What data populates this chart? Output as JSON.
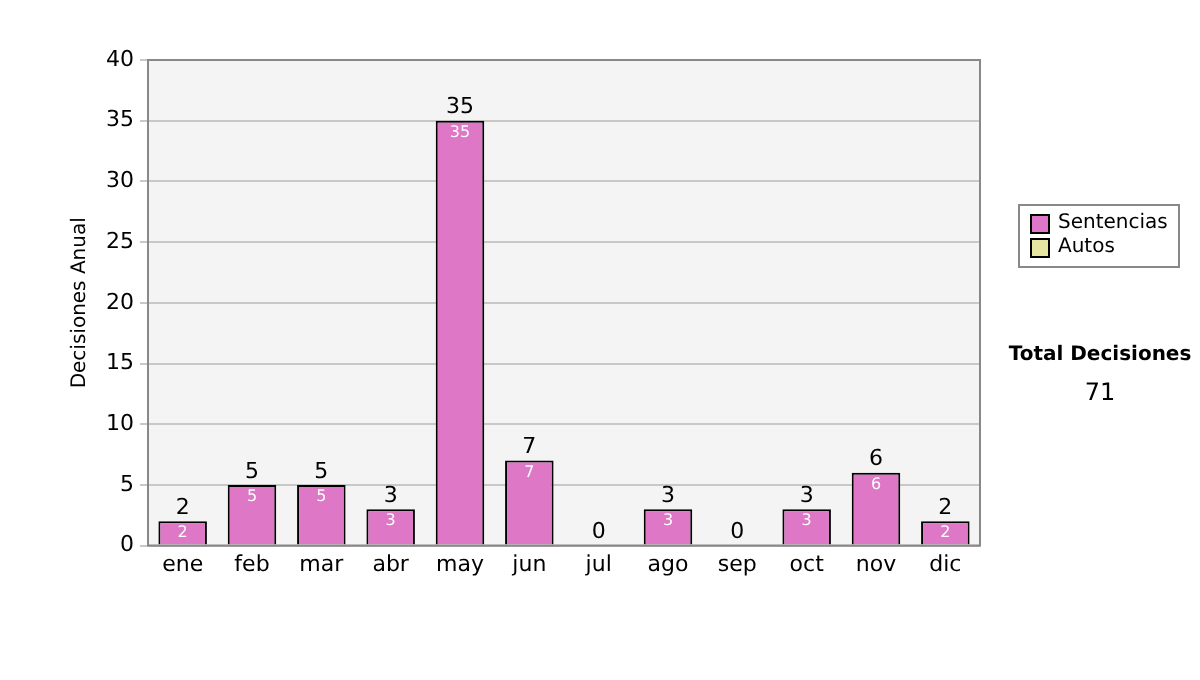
{
  "chart_data": {
    "type": "bar",
    "stacked": true,
    "ylabel": "Decisiones Anual",
    "categories": [
      "ene",
      "feb",
      "mar",
      "abr",
      "may",
      "jun",
      "jul",
      "ago",
      "sep",
      "oct",
      "nov",
      "dic"
    ],
    "series": [
      {
        "name": "Sentencias",
        "color": "#dd77c6",
        "values": [
          2,
          5,
          5,
          3,
          35,
          7,
          0,
          3,
          0,
          3,
          6,
          2
        ],
        "value_labels": [
          "2",
          "5",
          "5",
          "3",
          "35",
          "7",
          null,
          "3",
          null,
          "3",
          "6",
          "2"
        ]
      },
      {
        "name": "Autos",
        "color": "#e6e6a0",
        "values": [
          0,
          0,
          0,
          0,
          0,
          0,
          0,
          0,
          0,
          0,
          0,
          0
        ]
      }
    ],
    "totals": [
      "2",
      "5",
      "5",
      "3",
      "35",
      "7",
      "0",
      "3",
      "0",
      "3",
      "6",
      "2"
    ],
    "ylim": [
      0,
      40
    ],
    "yticks": [
      0,
      5,
      10,
      15,
      20,
      25,
      30,
      35,
      40
    ],
    "grid": "y",
    "legend": "right",
    "annotations": [
      "Total Decisiones",
      "71"
    ]
  }
}
